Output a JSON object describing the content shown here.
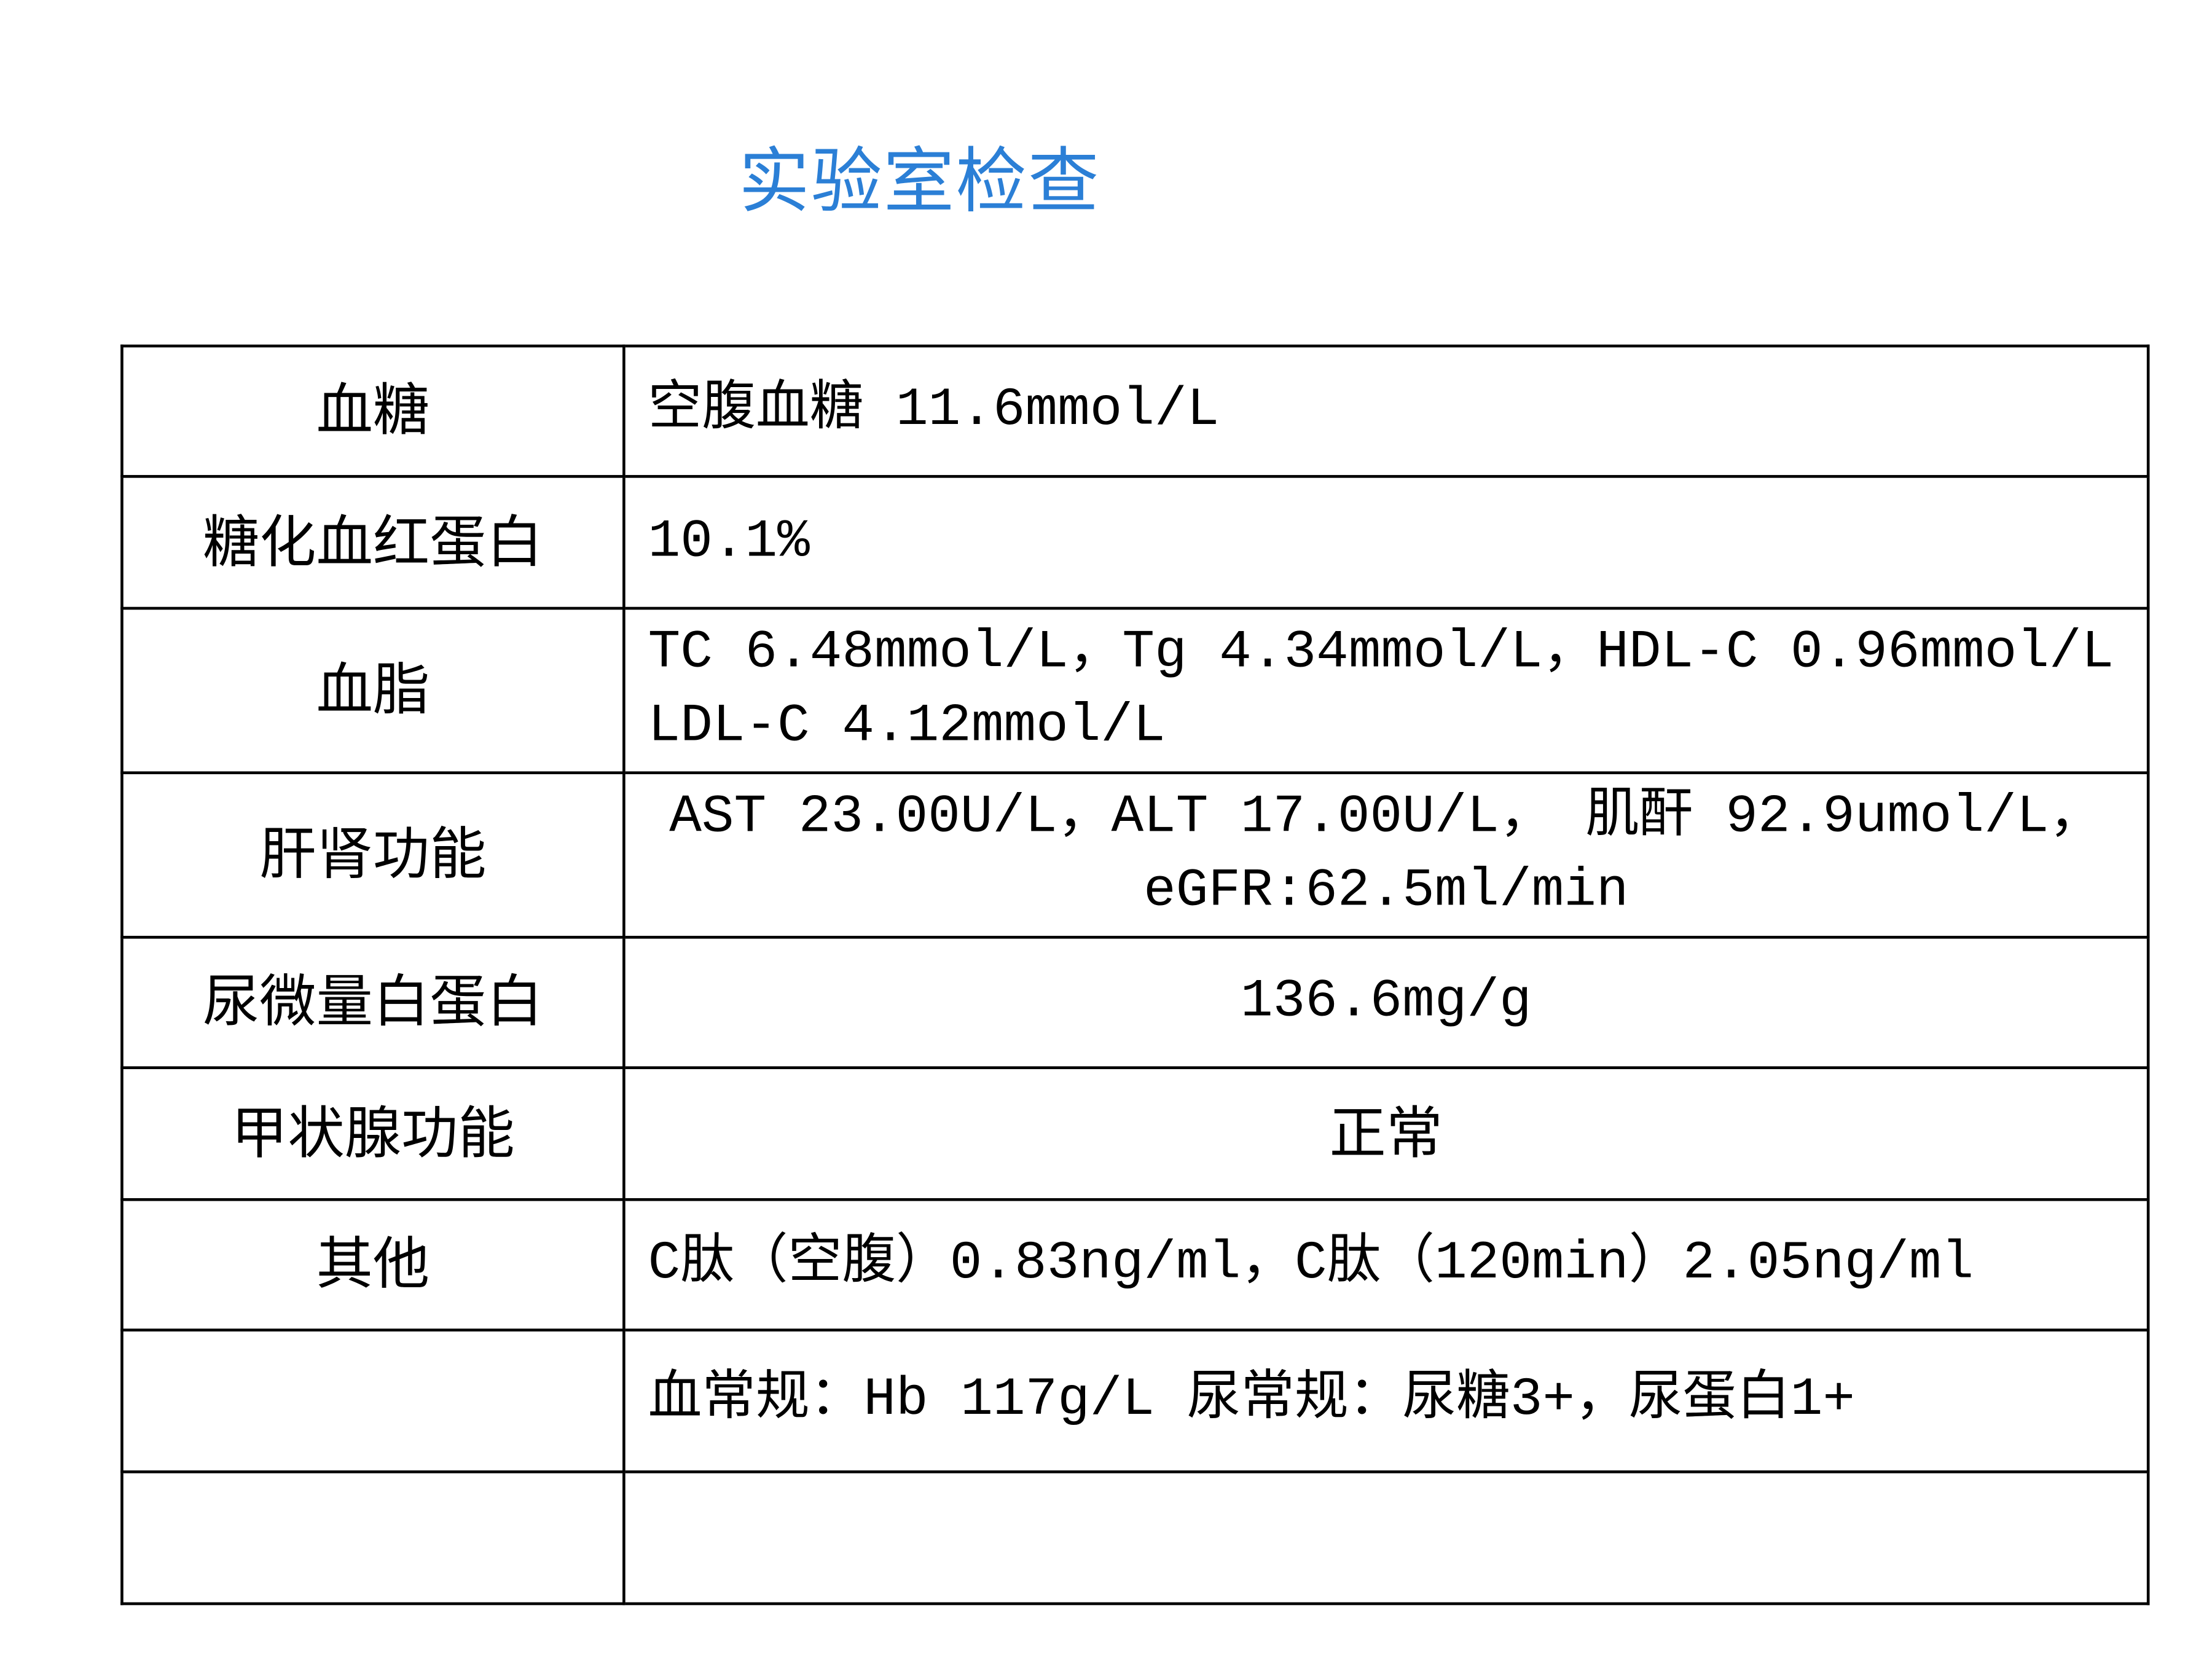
{
  "title": "实验室检查",
  "colors": {
    "title": "#2b7fd6",
    "border": "#000000"
  },
  "rows": [
    {
      "label": "血糖",
      "value": "空腹血糖 11.6mmol/L"
    },
    {
      "label": "糖化血红蛋白",
      "value": "10.1%"
    },
    {
      "label": "血脂",
      "value": "TC 6.48mmol/L，Tg 4.34mmol/L，HDL-C 0.96mmol/L",
      "value2": "LDL-C 4.12mmol/L"
    },
    {
      "label": "肝肾功能",
      "value": "AST 23.00U/L，ALT 17.00U/L， 肌酐 92.9umol/L，",
      "value2": "eGFR:62.5ml/min"
    },
    {
      "label": "尿微量白蛋白",
      "value": "136.6mg/g"
    },
    {
      "label": "甲状腺功能",
      "value": "正常"
    },
    {
      "label": "其他",
      "value": "C肽（空腹）0.83ng/ml，C肽（120min）2.05ng/ml"
    },
    {
      "label": "",
      "value": "血常规：Hb 117g/L 尿常规：尿糖3+，尿蛋白1+"
    },
    {
      "label": "",
      "value": ""
    }
  ]
}
